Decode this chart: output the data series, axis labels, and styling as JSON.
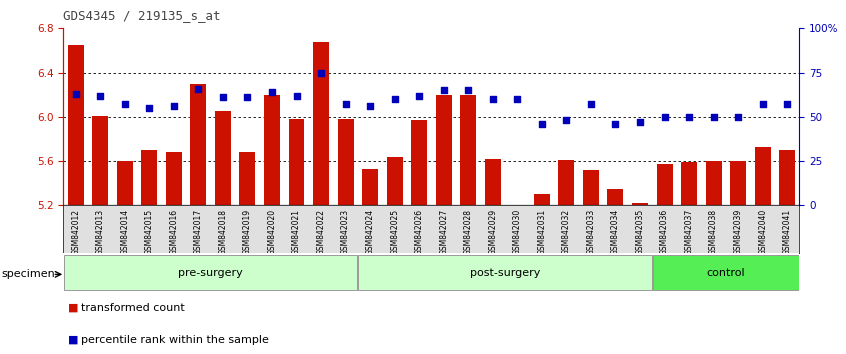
{
  "title": "GDS4345 / 219135_s_at",
  "categories": [
    "GSM842012",
    "GSM842013",
    "GSM842014",
    "GSM842015",
    "GSM842016",
    "GSM842017",
    "GSM842018",
    "GSM842019",
    "GSM842020",
    "GSM842021",
    "GSM842022",
    "GSM842023",
    "GSM842024",
    "GSM842025",
    "GSM842026",
    "GSM842027",
    "GSM842028",
    "GSM842029",
    "GSM842030",
    "GSM842031",
    "GSM842032",
    "GSM842033",
    "GSM842034",
    "GSM842035",
    "GSM842036",
    "GSM842037",
    "GSM842038",
    "GSM842039",
    "GSM842040",
    "GSM842041"
  ],
  "bar_values": [
    6.65,
    6.01,
    5.6,
    5.7,
    5.68,
    6.3,
    6.05,
    5.68,
    6.2,
    5.98,
    6.68,
    5.98,
    5.53,
    5.64,
    5.97,
    6.2,
    6.2,
    5.62,
    5.2,
    5.3,
    5.61,
    5.52,
    5.35,
    5.22,
    5.57,
    5.59,
    5.6,
    5.6,
    5.73,
    5.7
  ],
  "percentile_values": [
    63,
    62,
    57,
    55,
    56,
    66,
    61,
    61,
    64,
    62,
    75,
    57,
    56,
    60,
    62,
    65,
    65,
    60,
    60,
    46,
    48,
    57,
    46,
    47,
    50,
    50,
    50,
    50,
    57,
    57
  ],
  "groups": [
    {
      "label": "pre-surgery",
      "start": 0,
      "end": 12,
      "color": "#ccffcc"
    },
    {
      "label": "post-surgery",
      "start": 12,
      "end": 24,
      "color": "#ccffcc"
    },
    {
      "label": "control",
      "start": 24,
      "end": 30,
      "color": "#55ee55"
    }
  ],
  "bar_color": "#cc1100",
  "dot_color": "#0000bb",
  "ylim_left": [
    5.2,
    6.8
  ],
  "ylim_right": [
    0,
    100
  ],
  "yticks_left": [
    5.2,
    5.6,
    6.0,
    6.4,
    6.8
  ],
  "yticks_right": [
    0,
    25,
    50,
    75,
    100
  ],
  "ytick_labels_right": [
    "0",
    "25",
    "50",
    "75",
    "100%"
  ],
  "grid_values": [
    5.6,
    6.0,
    6.4
  ],
  "title_color": "#444444",
  "left_axis_color": "#cc1100",
  "right_axis_color": "#0000bb",
  "tick_bg_color": "#e0e0e0"
}
